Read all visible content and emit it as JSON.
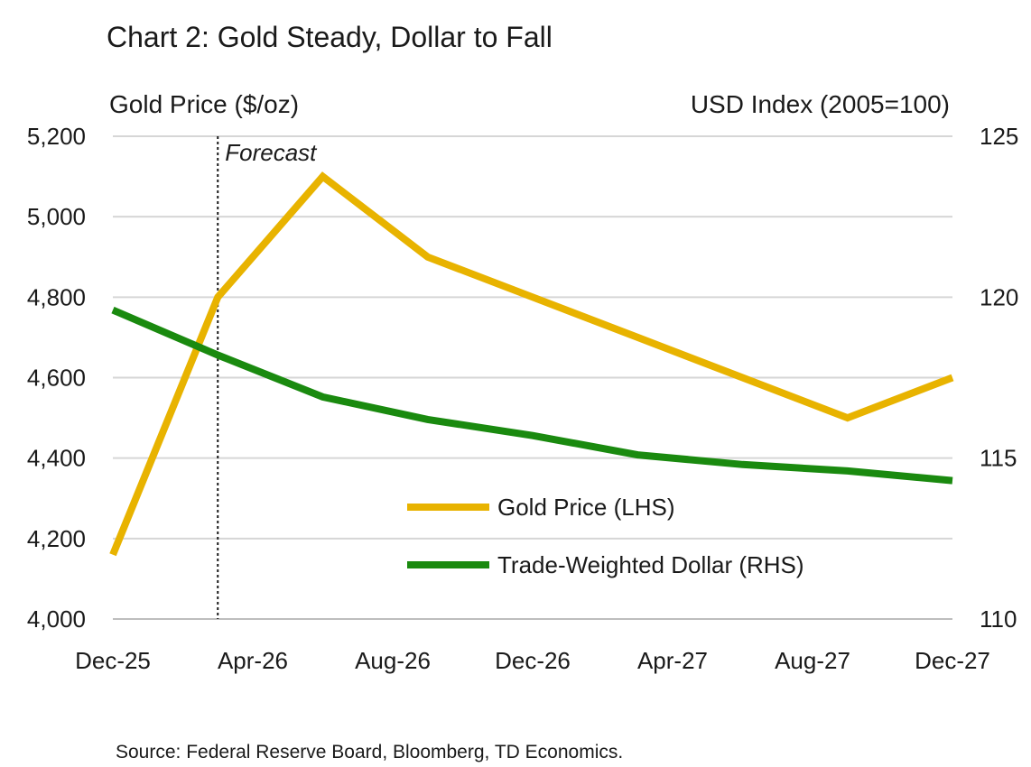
{
  "chart_data": {
    "type": "line",
    "title": "Chart 2: Gold Steady, Dollar to Fall",
    "y_left_label": "Gold Price ($/oz)",
    "y_right_label": "USD Index (2005=100)",
    "x_ticks": [
      "Dec-25",
      "Apr-26",
      "Aug-26",
      "Dec-26",
      "Apr-27",
      "Aug-27",
      "Dec-27"
    ],
    "y_left_ticks": [
      "4,000",
      "4,200",
      "4,400",
      "4,600",
      "4,800",
      "5,000",
      "5,200"
    ],
    "y_left_range": [
      4000,
      5200
    ],
    "y_right_ticks": [
      "110",
      "115",
      "120",
      "125"
    ],
    "y_right_range": [
      110,
      125
    ],
    "x_months_range": [
      0,
      24
    ],
    "grid": true,
    "legend_position": "bottom-right",
    "annotation": {
      "label": "Forecast",
      "x_month": 3
    },
    "series": [
      {
        "name": "Gold Price (LHS)",
        "axis": "left",
        "color": "#E8B300",
        "points": [
          {
            "date": "Dec-25",
            "m": 0,
            "value": 4160
          },
          {
            "date": "Mar-26",
            "m": 3,
            "value": 4800
          },
          {
            "date": "Jun-26",
            "m": 6,
            "value": 5100
          },
          {
            "date": "Sep-26",
            "m": 9,
            "value": 4900
          },
          {
            "date": "Dec-26",
            "m": 12,
            "value": 4800
          },
          {
            "date": "Mar-27",
            "m": 15,
            "value": 4700
          },
          {
            "date": "Jun-27",
            "m": 18,
            "value": 4600
          },
          {
            "date": "Sep-27",
            "m": 21,
            "value": 4500
          },
          {
            "date": "Dec-27",
            "m": 24,
            "value": 4600
          }
        ]
      },
      {
        "name": "Trade-Weighted Dollar (RHS)",
        "axis": "right",
        "color": "#1A8A0F",
        "points": [
          {
            "date": "Dec-25",
            "m": 0,
            "value": 119.6
          },
          {
            "date": "Mar-26",
            "m": 3,
            "value": 118.2
          },
          {
            "date": "Jun-26",
            "m": 6,
            "value": 116.9
          },
          {
            "date": "Sep-26",
            "m": 9,
            "value": 116.2
          },
          {
            "date": "Dec-26",
            "m": 12,
            "value": 115.7
          },
          {
            "date": "Mar-27",
            "m": 15,
            "value": 115.1
          },
          {
            "date": "Jun-27",
            "m": 18,
            "value": 114.8
          },
          {
            "date": "Sep-27",
            "m": 21,
            "value": 114.6
          },
          {
            "date": "Dec-27",
            "m": 24,
            "value": 114.3
          }
        ]
      }
    ],
    "source": "Source: Federal Reserve Board, Bloomberg, TD Economics."
  }
}
